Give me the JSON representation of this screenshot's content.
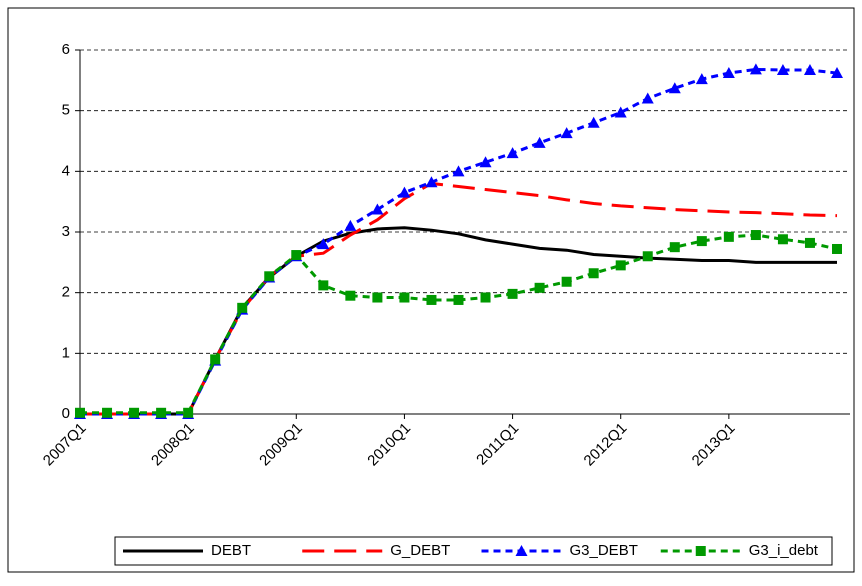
{
  "chart_data": {
    "type": "line",
    "categories": [
      "2007Q1",
      null,
      null,
      null,
      "2008Q1",
      null,
      null,
      null,
      "2009Q1",
      null,
      null,
      null,
      "2010Q1",
      null,
      null,
      null,
      "2011Q1",
      null,
      null,
      null,
      "2012Q1",
      null,
      null,
      null,
      "2013Q1",
      null,
      null,
      null,
      null
    ],
    "series": [
      {
        "name": "DEBT",
        "color": "#000000",
        "dash": "solid",
        "marker": "none",
        "values": [
          0,
          0,
          0,
          0,
          0,
          0.9,
          1.75,
          2.25,
          2.6,
          2.85,
          2.98,
          3.05,
          3.07,
          3.03,
          2.97,
          2.87,
          2.8,
          2.73,
          2.7,
          2.63,
          2.6,
          2.57,
          2.55,
          2.53,
          2.53,
          2.5,
          2.5,
          2.5,
          2.5
        ]
      },
      {
        "name": "G_DEBT",
        "color": "#ff0000",
        "dash": "long",
        "marker": "none",
        "values": [
          0,
          0,
          0,
          0,
          0,
          0.9,
          1.72,
          2.27,
          2.6,
          2.65,
          2.95,
          3.2,
          3.55,
          3.8,
          3.75,
          3.7,
          3.65,
          3.6,
          3.53,
          3.47,
          3.43,
          3.4,
          3.37,
          3.35,
          3.33,
          3.32,
          3.3,
          3.28,
          3.27
        ]
      },
      {
        "name": "G3_DEBT",
        "color": "#0000ff",
        "dash": "short",
        "marker": "triangle",
        "values": [
          0,
          0,
          0,
          0,
          0,
          0.88,
          1.72,
          2.25,
          2.6,
          2.8,
          3.1,
          3.37,
          3.65,
          3.82,
          4.0,
          4.15,
          4.3,
          4.47,
          4.63,
          4.8,
          4.97,
          5.2,
          5.37,
          5.52,
          5.62,
          5.68,
          5.67,
          5.67,
          5.62
        ]
      },
      {
        "name": "G3_i_debt",
        "color": "#009900",
        "dash": "short",
        "marker": "square",
        "values": [
          0.02,
          0.02,
          0.02,
          0.02,
          0.02,
          0.9,
          1.75,
          2.27,
          2.62,
          2.12,
          1.95,
          1.92,
          1.92,
          1.88,
          1.88,
          1.92,
          1.98,
          2.08,
          2.18,
          2.32,
          2.45,
          2.6,
          2.75,
          2.85,
          2.92,
          2.95,
          2.88,
          2.82,
          2.72
        ]
      }
    ],
    "ylim": [
      0,
      6
    ],
    "yticks": [
      0,
      1,
      2,
      3,
      4,
      5,
      6
    ],
    "grid": true,
    "legend": "bottom"
  }
}
